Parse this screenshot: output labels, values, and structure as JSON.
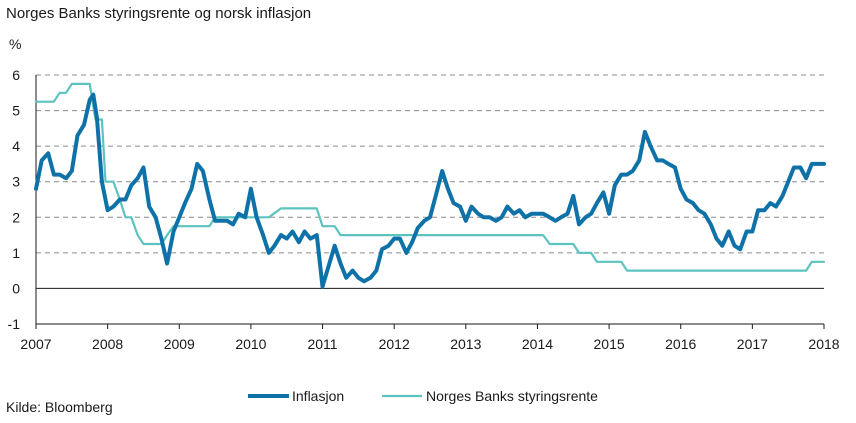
{
  "chart_data": {
    "type": "line",
    "title": "Norges Banks styringsrente og norsk inflasjon",
    "ylabel": "%",
    "source": "Kilde: Bloomberg",
    "xlim": [
      2007,
      2018
    ],
    "ylim": [
      -1,
      6
    ],
    "x_ticks": [
      "2007",
      "2008",
      "2009",
      "2010",
      "2011",
      "2012",
      "2013",
      "2014",
      "2015",
      "2016",
      "2017",
      "2018"
    ],
    "y_ticks": [
      "-1",
      "0",
      "1",
      "2",
      "3",
      "4",
      "5",
      "6"
    ],
    "grid": "horizontal dashed",
    "legend_position": "bottom",
    "colors": {
      "inflasjon": "#0e72a8",
      "styringsrente": "#5cc3c0",
      "grid": "#8c8c8c"
    },
    "series": [
      {
        "name": "Inflasjon",
        "points": [
          [
            2007.0,
            2.8
          ],
          [
            2007.08,
            3.6
          ],
          [
            2007.17,
            3.8
          ],
          [
            2007.25,
            3.2
          ],
          [
            2007.33,
            3.2
          ],
          [
            2007.42,
            3.1
          ],
          [
            2007.5,
            3.3
          ],
          [
            2007.58,
            4.3
          ],
          [
            2007.67,
            4.6
          ],
          [
            2007.75,
            5.3
          ],
          [
            2007.8,
            5.45
          ],
          [
            2007.85,
            4.8
          ],
          [
            2007.92,
            3.0
          ],
          [
            2008.0,
            2.2
          ],
          [
            2008.08,
            2.3
          ],
          [
            2008.17,
            2.5
          ],
          [
            2008.25,
            2.5
          ],
          [
            2008.33,
            2.9
          ],
          [
            2008.42,
            3.1
          ],
          [
            2008.5,
            3.4
          ],
          [
            2008.58,
            2.3
          ],
          [
            2008.67,
            2.0
          ],
          [
            2008.75,
            1.4
          ],
          [
            2008.83,
            0.7
          ],
          [
            2008.92,
            1.6
          ],
          [
            2009.0,
            2.0
          ],
          [
            2009.08,
            2.4
          ],
          [
            2009.17,
            2.8
          ],
          [
            2009.25,
            3.5
          ],
          [
            2009.33,
            3.3
          ],
          [
            2009.42,
            2.5
          ],
          [
            2009.5,
            1.9
          ],
          [
            2009.58,
            1.9
          ],
          [
            2009.67,
            1.9
          ],
          [
            2009.75,
            1.8
          ],
          [
            2009.83,
            2.1
          ],
          [
            2009.92,
            2.0
          ],
          [
            2010.0,
            2.8
          ],
          [
            2010.08,
            2.0
          ],
          [
            2010.17,
            1.5
          ],
          [
            2010.25,
            1.0
          ],
          [
            2010.33,
            1.2
          ],
          [
            2010.42,
            1.5
          ],
          [
            2010.5,
            1.4
          ],
          [
            2010.58,
            1.6
          ],
          [
            2010.67,
            1.3
          ],
          [
            2010.75,
            1.6
          ],
          [
            2010.83,
            1.4
          ],
          [
            2010.92,
            1.5
          ],
          [
            2011.0,
            0.05
          ],
          [
            2011.08,
            0.6
          ],
          [
            2011.17,
            1.2
          ],
          [
            2011.25,
            0.7
          ],
          [
            2011.33,
            0.3
          ],
          [
            2011.42,
            0.5
          ],
          [
            2011.5,
            0.3
          ],
          [
            2011.58,
            0.2
          ],
          [
            2011.67,
            0.3
          ],
          [
            2011.75,
            0.5
          ],
          [
            2011.83,
            1.1
          ],
          [
            2011.92,
            1.2
          ],
          [
            2012.0,
            1.4
          ],
          [
            2012.08,
            1.4
          ],
          [
            2012.17,
            1.0
          ],
          [
            2012.25,
            1.3
          ],
          [
            2012.33,
            1.7
          ],
          [
            2012.42,
            1.9
          ],
          [
            2012.5,
            2.0
          ],
          [
            2012.58,
            2.6
          ],
          [
            2012.67,
            3.3
          ],
          [
            2012.75,
            2.8
          ],
          [
            2012.83,
            2.4
          ],
          [
            2012.92,
            2.3
          ],
          [
            2013.0,
            1.9
          ],
          [
            2013.08,
            2.3
          ],
          [
            2013.17,
            2.1
          ],
          [
            2013.25,
            2.0
          ],
          [
            2013.33,
            2.0
          ],
          [
            2013.42,
            1.9
          ],
          [
            2013.5,
            2.0
          ],
          [
            2013.58,
            2.3
          ],
          [
            2013.67,
            2.1
          ],
          [
            2013.75,
            2.2
          ],
          [
            2013.83,
            2.0
          ],
          [
            2013.92,
            2.1
          ],
          [
            2014.0,
            2.1
          ],
          [
            2014.08,
            2.1
          ],
          [
            2014.17,
            2.0
          ],
          [
            2014.25,
            1.9
          ],
          [
            2014.33,
            2.0
          ],
          [
            2014.42,
            2.1
          ],
          [
            2014.5,
            2.6
          ],
          [
            2014.58,
            1.8
          ],
          [
            2014.67,
            2.0
          ],
          [
            2014.75,
            2.1
          ],
          [
            2014.83,
            2.4
          ],
          [
            2014.92,
            2.7
          ],
          [
            2015.0,
            2.1
          ],
          [
            2015.08,
            2.9
          ],
          [
            2015.17,
            3.2
          ],
          [
            2015.25,
            3.2
          ],
          [
            2015.33,
            3.3
          ],
          [
            2015.42,
            3.6
          ],
          [
            2015.5,
            4.4
          ],
          [
            2015.58,
            4.0
          ],
          [
            2015.67,
            3.6
          ],
          [
            2015.75,
            3.6
          ],
          [
            2015.83,
            3.5
          ],
          [
            2015.92,
            3.4
          ],
          [
            2016.0,
            2.8
          ],
          [
            2016.08,
            2.5
          ],
          [
            2016.17,
            2.4
          ],
          [
            2016.25,
            2.2
          ],
          [
            2016.33,
            2.1
          ],
          [
            2016.42,
            1.8
          ],
          [
            2016.5,
            1.4
          ],
          [
            2016.58,
            1.2
          ],
          [
            2016.67,
            1.6
          ],
          [
            2016.75,
            1.2
          ],
          [
            2016.83,
            1.1
          ],
          [
            2016.92,
            1.6
          ],
          [
            2017.0,
            1.6
          ],
          [
            2017.08,
            2.2
          ],
          [
            2017.17,
            2.2
          ],
          [
            2017.25,
            2.4
          ],
          [
            2017.33,
            2.3
          ],
          [
            2017.42,
            2.6
          ],
          [
            2017.5,
            3.0
          ],
          [
            2017.58,
            3.4
          ],
          [
            2017.67,
            3.4
          ],
          [
            2017.75,
            3.1
          ],
          [
            2017.83,
            3.5
          ],
          [
            2017.92,
            3.5
          ],
          [
            2018.0,
            3.5
          ]
        ]
      },
      {
        "name": "Norges Banks styringsrente",
        "points": [
          [
            2007.0,
            5.25
          ],
          [
            2007.25,
            5.25
          ],
          [
            2007.33,
            5.5
          ],
          [
            2007.42,
            5.5
          ],
          [
            2007.5,
            5.75
          ],
          [
            2007.75,
            5.75
          ],
          [
            2007.83,
            4.75
          ],
          [
            2007.92,
            4.75
          ],
          [
            2007.97,
            3.0
          ],
          [
            2008.08,
            3.0
          ],
          [
            2008.17,
            2.5
          ],
          [
            2008.25,
            2.0
          ],
          [
            2008.33,
            2.0
          ],
          [
            2008.42,
            1.5
          ],
          [
            2008.5,
            1.25
          ],
          [
            2008.75,
            1.25
          ],
          [
            2008.83,
            1.5
          ],
          [
            2008.92,
            1.75
          ],
          [
            2009.42,
            1.75
          ],
          [
            2009.5,
            2.0
          ],
          [
            2010.25,
            2.0
          ],
          [
            2010.42,
            2.25
          ],
          [
            2010.92,
            2.25
          ],
          [
            2011.0,
            1.75
          ],
          [
            2011.17,
            1.75
          ],
          [
            2011.25,
            1.5
          ],
          [
            2014.08,
            1.5
          ],
          [
            2014.17,
            1.25
          ],
          [
            2014.5,
            1.25
          ],
          [
            2014.58,
            1.0
          ],
          [
            2014.75,
            1.0
          ],
          [
            2014.83,
            0.75
          ],
          [
            2015.17,
            0.75
          ],
          [
            2015.25,
            0.5
          ],
          [
            2017.75,
            0.5
          ],
          [
            2017.83,
            0.75
          ],
          [
            2018.0,
            0.75
          ]
        ]
      }
    ]
  }
}
